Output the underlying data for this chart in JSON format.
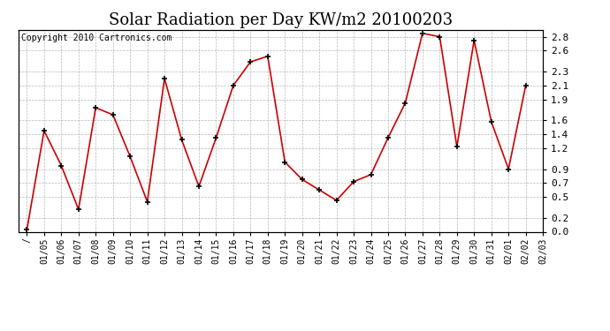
{
  "title": "Solar Radiation per Day KW/m2 20100203",
  "copyright": "Copyright 2010 Cartronics.com",
  "dates": [
    "/",
    "01/05",
    "01/06",
    "01/07",
    "01/08",
    "01/09",
    "01/10",
    "01/11",
    "01/12",
    "01/13",
    "01/14",
    "01/15",
    "01/16",
    "01/17",
    "01/18",
    "01/19",
    "01/20",
    "01/21",
    "01/22",
    "01/23",
    "01/24",
    "01/25",
    "01/26",
    "01/27",
    "01/28",
    "01/29",
    "01/30",
    "01/31",
    "02/01",
    "02/02",
    "02/03"
  ],
  "values": [
    0.03,
    1.45,
    0.95,
    0.32,
    1.78,
    1.68,
    1.08,
    0.43,
    2.2,
    1.32,
    0.65,
    1.35,
    2.1,
    2.44,
    2.52,
    1.0,
    0.75,
    0.6,
    0.45,
    0.72,
    0.82,
    1.35,
    1.85,
    2.85,
    2.8,
    1.22,
    2.75,
    1.58,
    0.9,
    2.1
  ],
  "line_color": "#cc0000",
  "marker_color": "#000000",
  "background_color": "#ffffff",
  "grid_color": "#999999",
  "ylim": [
    0.0,
    2.9
  ],
  "yticks": [
    0.0,
    0.2,
    0.5,
    0.7,
    0.9,
    1.2,
    1.4,
    1.6,
    1.9,
    2.1,
    2.3,
    2.6,
    2.8
  ],
  "title_fontsize": 13,
  "copyright_fontsize": 7,
  "tick_fontsize": 7,
  "ytick_fontsize": 8
}
